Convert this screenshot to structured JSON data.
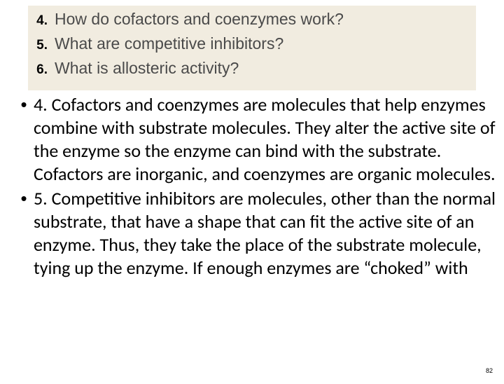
{
  "questions_box": {
    "background_color": "#f1ece0",
    "items": [
      {
        "num": "4.",
        "text": "How do cofactors and coenzymes work?"
      },
      {
        "num": "5.",
        "text": "What are competitive inhibitors?"
      },
      {
        "num": "6.",
        "text": "What is allosteric activity?"
      }
    ],
    "num_fontsize": 19,
    "text_fontsize": 23,
    "text_color": "#4a4a4a",
    "num_color": "#000000"
  },
  "answers": {
    "fontsize": 26,
    "line_height": 33,
    "color": "#000000",
    "bullet_char": "•",
    "items": [
      "4. Cofactors and coenzymes are molecules that help enzymes combine with substrate molecules. They alter the active site of the enzyme so the enzyme can bind with the substrate. Cofactors are inorganic, and coenzymes are organic molecules.",
      "5. Competitive inhibitors are molecules, other than the normal substrate, that have a shape that can fit the active site of an enzyme. Thus, they take the place of the substrate molecule, tying up the enzyme. If enough enzymes are “choked” with"
    ]
  },
  "page_number": "82",
  "page_background": "#ffffff"
}
